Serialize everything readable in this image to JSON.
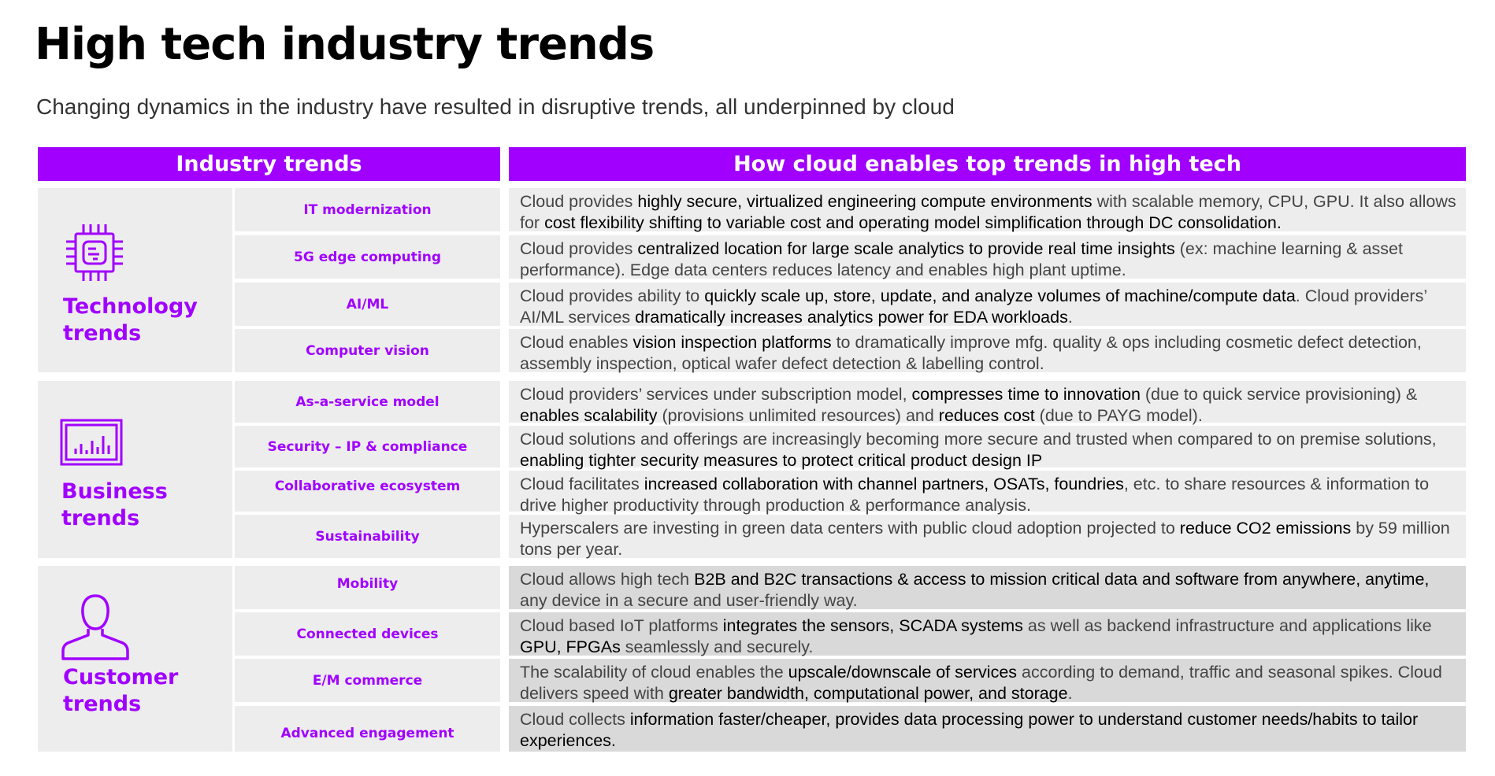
{
  "title": "High tech industry trends",
  "subtitle": "Changing dynamics in the industry have resulted in disruptive trends, all underpinned by cloud",
  "headers": {
    "left": "Industry trends",
    "right": "How cloud enables top trends in high tech"
  },
  "colors": {
    "accent": "#a100ff",
    "cell": "#ededed",
    "cell_dark": "#d9d9d9"
  },
  "groups": [
    {
      "label_1": "Technology",
      "label_2": "trends",
      "icon": "chip-icon"
    },
    {
      "label_1": "Business",
      "label_2": "trends",
      "icon": "bar-chart-icon"
    },
    {
      "label_1": "Customer",
      "label_2": "trends",
      "icon": "person-icon"
    }
  ],
  "rows": [
    {
      "trend": "IT modernization",
      "parts": [
        [
          "Cloud provides ",
          false
        ],
        [
          "highly secure, virtualized engineering compute environments",
          true
        ],
        [
          " with scalable memory, CPU, GPU.  It also allows for ",
          false
        ],
        [
          "cost flexibility shifting to variable cost and operating model simplification through DC consolidation.",
          true
        ]
      ]
    },
    {
      "trend": "5G edge computing",
      "parts": [
        [
          "Cloud provides ",
          false
        ],
        [
          "centralized location for large scale analytics to provide real time insights",
          true
        ],
        [
          " (ex: machine learning & asset performance). Edge data centers reduces latency and enables high plant uptime.",
          false
        ]
      ]
    },
    {
      "trend": "AI/ML",
      "parts": [
        [
          "Cloud provides ability to ",
          false
        ],
        [
          "quickly scale up, store, update, and analyze volumes of machine/compute data",
          true
        ],
        [
          ". Cloud providers’ AI/ML services ",
          false
        ],
        [
          "dramatically increases analytics power for EDA workloads",
          true
        ],
        [
          ".",
          false
        ]
      ]
    },
    {
      "trend": "Computer vision",
      "parts": [
        [
          "Cloud enables ",
          false
        ],
        [
          "vision inspection platforms",
          true
        ],
        [
          " to dramatically improve mfg. quality & ops including cosmetic defect detection, assembly inspection, optical wafer defect detection  & labelling control.",
          false
        ]
      ]
    },
    {
      "trend": "As-a-service model",
      "parts": [
        [
          "Cloud providers’ services under subscription model, ",
          false
        ],
        [
          "compresses time to innovation",
          true
        ],
        [
          " (due to quick service provisioning) & ",
          false
        ],
        [
          "enables scalability",
          true
        ],
        [
          " (provisions unlimited resources) and ",
          false
        ],
        [
          "reduces cost",
          true
        ],
        [
          " (due to PAYG model).",
          false
        ]
      ]
    },
    {
      "trend": "Security – IP & compliance",
      "parts": [
        [
          "Cloud solutions and offerings are increasingly becoming more secure and trusted when compared to on premise solutions, ",
          false
        ],
        [
          "enabling tighter security measures to protect critical product design IP",
          true
        ]
      ]
    },
    {
      "trend": "Collaborative ecosystem",
      "parts": [
        [
          "Cloud facilitates ",
          false
        ],
        [
          "increased collaboration with  channel partners, OSATs, foundries",
          true
        ],
        [
          ", etc. to share resources & information to drive higher productivity through production & performance analysis.",
          false
        ]
      ]
    },
    {
      "trend": "Sustainability",
      "parts": [
        [
          "Hyperscalers are investing in green data centers with public cloud adoption projected to ",
          false
        ],
        [
          "reduce CO2 emissions",
          true
        ],
        [
          " by 59 million tons per year.",
          false
        ]
      ]
    },
    {
      "trend": "Mobility",
      "parts": [
        [
          "Cloud allows high tech ",
          false
        ],
        [
          "B2B and B2C transactions & access to mission critical data and software from anywhere, anytime,",
          true
        ],
        [
          " any device in a secure and user-friendly way.",
          false
        ]
      ]
    },
    {
      "trend": "Connected devices",
      "parts": [
        [
          "Cloud based IoT platforms ",
          false
        ],
        [
          "integrates the sensors, SCADA systems",
          true
        ],
        [
          " as well as backend infrastructure and applications like ",
          false
        ],
        [
          "GPU, FPGAs",
          true
        ],
        [
          " seamlessly and securely.",
          false
        ]
      ]
    },
    {
      "trend": "E/M commerce",
      "parts": [
        [
          "The scalability of cloud enables the ",
          false
        ],
        [
          "upscale/downscale of services",
          true
        ],
        [
          " according to demand, traffic and seasonal spikes. Cloud delivers speed with ",
          false
        ],
        [
          "greater bandwidth, computational power, and storage",
          true
        ],
        [
          ".",
          false
        ]
      ]
    },
    {
      "trend": "Advanced engagement",
      "parts": [
        [
          "Cloud collects ",
          false
        ],
        [
          "information faster/cheaper, provides data processing power to understand customer needs/habits to tailor experiences.",
          true
        ]
      ]
    }
  ]
}
